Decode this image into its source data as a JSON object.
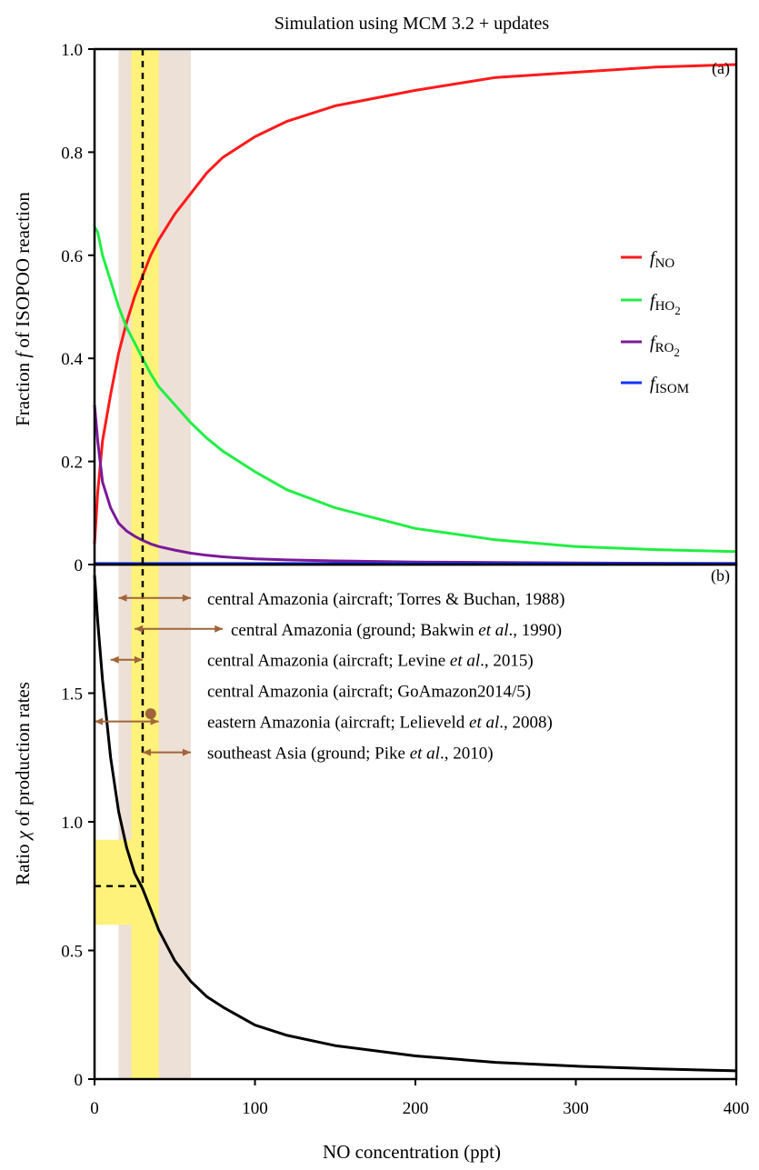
{
  "title": "Simulation using MCM 3.2 + updates",
  "colors": {
    "f_no": "#ff1a1a",
    "f_ho2": "#22ee44",
    "f_ro2": "#7a1a99",
    "f_isom": "#1133ff",
    "chi": "#000000",
    "arrow": "#a0653a",
    "yellow_band": "#fff27a",
    "beige_band": "#ede0d6",
    "point": "#a0653a"
  },
  "chart_data": [
    {
      "panel": "(a)",
      "type": "line",
      "xlabel": "",
      "ylabel": "Fraction f of ISOPOO reaction",
      "ylabel_parts": {
        "pre": "Fraction ",
        "var": "f",
        "post": " of ISOPOO reaction"
      },
      "xlim": [
        0,
        400
      ],
      "ylim": [
        0,
        1.0
      ],
      "yticks": [
        0,
        0.2,
        0.4,
        0.6,
        0.8,
        1.0
      ],
      "ytick_labels": [
        "0",
        "0.2",
        "0.4",
        "0.6",
        "0.8",
        "1.0"
      ],
      "x": [
        0,
        2,
        5,
        10,
        15,
        20,
        25,
        30,
        35,
        40,
        50,
        60,
        70,
        80,
        100,
        120,
        150,
        200,
        250,
        300,
        350,
        400
      ],
      "series": [
        {
          "key": "f_no",
          "label_main": "f",
          "label_sub": "NO",
          "label_sub2": "",
          "color_key": "f_no",
          "values": [
            0.04,
            0.14,
            0.24,
            0.33,
            0.41,
            0.47,
            0.52,
            0.56,
            0.6,
            0.63,
            0.68,
            0.72,
            0.76,
            0.79,
            0.83,
            0.86,
            0.89,
            0.92,
            0.945,
            0.955,
            0.965,
            0.97
          ]
        },
        {
          "key": "f_ho2",
          "label_main": "f",
          "label_sub": "HO",
          "label_sub2": "2",
          "color_key": "f_ho2",
          "values": [
            0.655,
            0.645,
            0.6,
            0.55,
            0.5,
            0.46,
            0.43,
            0.4,
            0.37,
            0.345,
            0.31,
            0.275,
            0.245,
            0.22,
            0.18,
            0.145,
            0.11,
            0.07,
            0.048,
            0.035,
            0.029,
            0.025
          ]
        },
        {
          "key": "f_ro2",
          "label_main": "f",
          "label_sub": "RO",
          "label_sub2": "2",
          "color_key": "f_ro2",
          "values": [
            0.31,
            0.24,
            0.16,
            0.11,
            0.08,
            0.065,
            0.055,
            0.047,
            0.04,
            0.035,
            0.028,
            0.022,
            0.018,
            0.015,
            0.011,
            0.009,
            0.007,
            0.005,
            0.004,
            0.003,
            0.0025,
            0.002
          ]
        },
        {
          "key": "f_isom",
          "label_main": "f",
          "label_sub": "ISOM",
          "label_sub2": "",
          "color_key": "f_isom",
          "values": [
            0.002,
            0.002,
            0.002,
            0.002,
            0.002,
            0.002,
            0.002,
            0.002,
            0.002,
            0.002,
            0.002,
            0.002,
            0.002,
            0.002,
            0.002,
            0.002,
            0.002,
            0.002,
            0.002,
            0.002,
            0.002,
            0.002
          ]
        }
      ],
      "legend_placement": "right"
    },
    {
      "panel": "(b)",
      "type": "line",
      "xlabel": "NO concentration (ppt)",
      "ylabel": "Ratio χ of production rates",
      "ylabel_parts": {
        "pre": "Ratio ",
        "var": "χ",
        "post": " of production rates"
      },
      "xlim": [
        0,
        400
      ],
      "ylim": [
        0,
        2.0
      ],
      "yticks": [
        0,
        0.5,
        1.0,
        1.5
      ],
      "ytick_labels": [
        "0",
        "0.5",
        "1.0",
        "1.5"
      ],
      "xticks": [
        0,
        100,
        200,
        300,
        400
      ],
      "xtick_labels": [
        "0",
        "100",
        "200",
        "300",
        "400"
      ],
      "x": [
        0,
        2,
        5,
        10,
        15,
        20,
        25,
        30,
        35,
        40,
        50,
        60,
        70,
        80,
        100,
        120,
        150,
        200,
        250,
        300,
        350,
        400
      ],
      "series": [
        {
          "key": "chi",
          "color_key": "chi",
          "values": [
            1.96,
            1.78,
            1.55,
            1.25,
            1.04,
            0.9,
            0.8,
            0.74,
            0.66,
            0.58,
            0.46,
            0.38,
            0.32,
            0.28,
            0.21,
            0.17,
            0.13,
            0.09,
            0.065,
            0.05,
            0.04,
            0.032
          ]
        }
      ],
      "estimate_point": {
        "x": 30,
        "y": 0.75
      },
      "shaded_bands": {
        "yellow_x": [
          23,
          40
        ],
        "beige_x": [
          15,
          60
        ],
        "yellow_y": [
          0.6,
          0.93
        ]
      },
      "point": {
        "x": 35,
        "y": 1.42
      },
      "ranges": [
        {
          "text": "central Amazonia (aircraft; Torres & Buchan, 1988)",
          "parts": [
            {
              "t": "central Amazonia (aircraft; Torres & Buchan, 1988)",
              "i": false
            }
          ],
          "x": [
            15,
            60
          ],
          "y": 1.87
        },
        {
          "text": "central Amazonia (ground; Bakwin et al., 1990)",
          "parts": [
            {
              "t": "central Amazonia (ground; Bakwin ",
              "i": false
            },
            {
              "t": "et al",
              "i": true
            },
            {
              "t": "., 1990)",
              "i": false
            }
          ],
          "x": [
            25,
            80
          ],
          "y": 1.75
        },
        {
          "text": "central Amazonia (aircraft; Levine et al., 2015)",
          "parts": [
            {
              "t": "central Amazonia (aircraft; Levine ",
              "i": false
            },
            {
              "t": "et al",
              "i": true
            },
            {
              "t": "., 2015)",
              "i": false
            }
          ],
          "x": [
            10,
            30
          ],
          "y": 1.63
        },
        {
          "text": "central Amazonia (aircraft; GoAmazon2014/5)",
          "parts": [
            {
              "t": "central Amazonia (aircraft; GoAmazon2014/5)",
              "i": false
            }
          ],
          "point": true,
          "y": 1.51
        },
        {
          "text": "eastern Amazonia (aircraft; Lelieveld et al., 2008)",
          "parts": [
            {
              "t": "eastern Amazonia (aircraft; Lelieveld ",
              "i": false
            },
            {
              "t": "et al",
              "i": true
            },
            {
              "t": "., 2008)",
              "i": false
            }
          ],
          "x": [
            0,
            40
          ],
          "y": 1.39
        },
        {
          "text": "southeast Asia (ground; Pike et al., 2010)",
          "parts": [
            {
              "t": "southeast Asia (ground; Pike ",
              "i": false
            },
            {
              "t": "et al",
              "i": true
            },
            {
              "t": "., 2010)",
              "i": false
            }
          ],
          "x": [
            30,
            60
          ],
          "y": 1.27
        }
      ]
    }
  ]
}
